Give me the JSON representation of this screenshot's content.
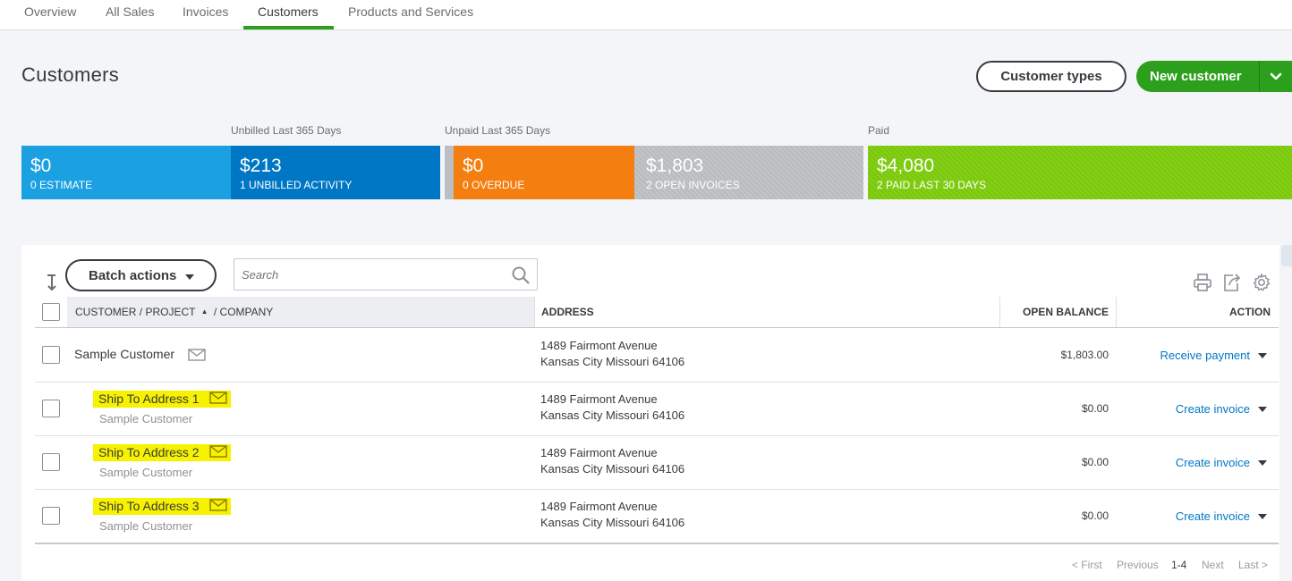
{
  "tabs": [
    {
      "label": "Overview"
    },
    {
      "label": "All Sales"
    },
    {
      "label": "Invoices"
    },
    {
      "label": "Customers",
      "active": true
    },
    {
      "label": "Products and Services"
    }
  ],
  "page": {
    "title": "Customers",
    "customer_types_label": "Customer types",
    "new_customer_label": "New customer"
  },
  "money_bar": {
    "labels": {
      "unbilled": "Unbilled Last 365 Days",
      "unpaid": "Unpaid Last 365 Days",
      "paid": "Paid"
    },
    "segments": [
      {
        "amount": "$0",
        "caption": "0 ESTIMATE",
        "color": "#1ba0e2"
      },
      {
        "amount": "$213",
        "caption": "1 UNBILLED ACTIVITY",
        "color": "#0077c5"
      },
      {
        "amount": "$0",
        "caption": "0 OVERDUE",
        "color": "#f57e10"
      },
      {
        "amount": "$1,803",
        "caption": "2 OPEN INVOICES",
        "color": "#bcbec2"
      },
      {
        "amount": "$4,080",
        "caption": "2 PAID LAST 30 DAYS",
        "color": "#7ac70c"
      }
    ]
  },
  "toolbar": {
    "batch_actions_label": "Batch actions",
    "search_placeholder": "Search"
  },
  "table": {
    "headers": {
      "customer": "CUSTOMER / PROJECT",
      "sort_arrow": "▲",
      "company": "/ COMPANY",
      "address": "ADDRESS",
      "open_balance": "OPEN BALANCE",
      "action": "ACTION"
    },
    "rows": [
      {
        "name": "Sample Customer",
        "parent": "",
        "address1": "1489 Fairmont Avenue",
        "address2": "Kansas City Missouri 64106",
        "balance": "$1,803.00",
        "action": "Receive payment",
        "highlighted": false
      },
      {
        "name": "Ship To Address 1",
        "parent": "Sample Customer",
        "address1": "1489 Fairmont Avenue",
        "address2": "Kansas City Missouri 64106",
        "balance": "$0.00",
        "action": "Create invoice",
        "highlighted": true
      },
      {
        "name": "Ship To Address 2",
        "parent": "Sample Customer",
        "address1": "1489 Fairmont Avenue",
        "address2": "Kansas City Missouri 64106",
        "balance": "$0.00",
        "action": "Create invoice",
        "highlighted": true
      },
      {
        "name": "Ship To Address 3",
        "parent": "Sample Customer",
        "address1": "1489 Fairmont Avenue",
        "address2": "Kansas City Missouri 64106",
        "balance": "$0.00",
        "action": "Create invoice",
        "highlighted": true
      }
    ]
  },
  "pagination": {
    "first": "< First",
    "previous": "Previous",
    "range": "1-4",
    "next": "Next",
    "last": "Last >"
  },
  "icons": [
    "sort-icon",
    "search-icon",
    "print-icon",
    "export-icon",
    "gear-icon",
    "envelope-icon",
    "chevron-down-icon"
  ]
}
